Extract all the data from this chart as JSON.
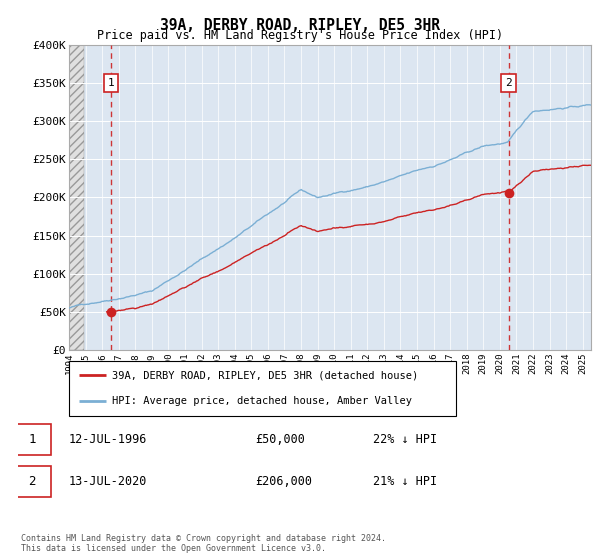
{
  "title": "39A, DERBY ROAD, RIPLEY, DE5 3HR",
  "subtitle": "Price paid vs. HM Land Registry's House Price Index (HPI)",
  "ylabel_ticks": [
    "£0",
    "£50K",
    "£100K",
    "£150K",
    "£200K",
    "£250K",
    "£300K",
    "£350K",
    "£400K"
  ],
  "ytick_vals": [
    0,
    50000,
    100000,
    150000,
    200000,
    250000,
    300000,
    350000,
    400000
  ],
  "ylim": [
    0,
    400000
  ],
  "xlim_start": 1994.0,
  "xlim_end": 2025.5,
  "hpi_color": "#7bafd4",
  "price_color": "#cc2222",
  "marker_color": "#cc2222",
  "dashed_color": "#cc2222",
  "bg_plot": "#dce6f1",
  "sale1_x": 1996.53,
  "sale1_y": 50000,
  "sale1_label": "1",
  "sale2_x": 2020.53,
  "sale2_y": 206000,
  "sale2_label": "2",
  "legend_line1": "39A, DERBY ROAD, RIPLEY, DE5 3HR (detached house)",
  "legend_line2": "HPI: Average price, detached house, Amber Valley",
  "note1_label": "1",
  "note1_date": "12-JUL-1996",
  "note1_price": "£50,000",
  "note1_hpi": "22% ↓ HPI",
  "note2_label": "2",
  "note2_date": "13-JUL-2020",
  "note2_price": "£206,000",
  "note2_hpi": "21% ↓ HPI",
  "footer": "Contains HM Land Registry data © Crown copyright and database right 2024.\nThis data is licensed under the Open Government Licence v3.0."
}
